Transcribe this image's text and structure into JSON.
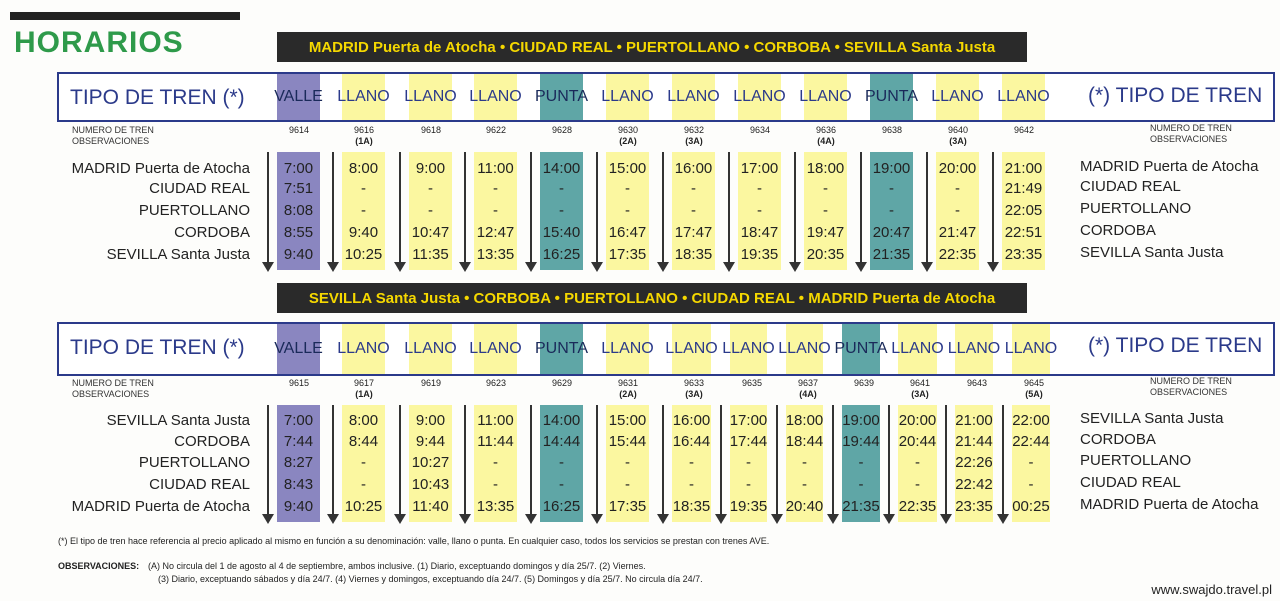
{
  "title": "HORARIOS",
  "colors": {
    "valle": "#8a86c0",
    "llano": "#fbf7a0",
    "punta": "#5fa6a6",
    "title_green": "#2e9a4a",
    "route_text": "#f5d800",
    "header_blue": "#2b3a8a"
  },
  "labels": {
    "tipo_left": "TIPO DE TREN (*)",
    "tipo_right": "(*) TIPO DE TREN",
    "numero": "NUMERO DE TREN",
    "observaciones": "OBSERVACIONES"
  },
  "tables": [
    {
      "route": "MADRID Puerta de Atocha • CIUDAD REAL • PUERTOLLANO • CORBOBA • SEVILLA Santa Justa",
      "stations": [
        "MADRID Puerta de Atocha",
        "CIUDAD REAL",
        "PUERTOLLANO",
        "CORDOBA",
        "SEVILLA Santa Justa"
      ],
      "trains": [
        {
          "type": "VALLE",
          "num": "9614",
          "obs": "",
          "times": [
            "7:00",
            "7:51",
            "8:08",
            "8:55",
            "9:40"
          ]
        },
        {
          "type": "LLANO",
          "num": "9616",
          "obs": "(1A)",
          "times": [
            "8:00",
            "-",
            "-",
            "9:40",
            "10:25"
          ]
        },
        {
          "type": "LLANO",
          "num": "9618",
          "obs": "",
          "times": [
            "9:00",
            "-",
            "-",
            "10:47",
            "11:35"
          ]
        },
        {
          "type": "LLANO",
          "num": "9622",
          "obs": "",
          "times": [
            "11:00",
            "-",
            "-",
            "12:47",
            "13:35"
          ]
        },
        {
          "type": "PUNTA",
          "num": "9628",
          "obs": "",
          "times": [
            "14:00",
            "-",
            "-",
            "15:40",
            "16:25"
          ]
        },
        {
          "type": "LLANO",
          "num": "9630",
          "obs": "(2A)",
          "times": [
            "15:00",
            "-",
            "-",
            "16:47",
            "17:35"
          ]
        },
        {
          "type": "LLANO",
          "num": "9632",
          "obs": "(3A)",
          "times": [
            "16:00",
            "-",
            "-",
            "17:47",
            "18:35"
          ]
        },
        {
          "type": "LLANO",
          "num": "9634",
          "obs": "",
          "times": [
            "17:00",
            "-",
            "-",
            "18:47",
            "19:35"
          ]
        },
        {
          "type": "LLANO",
          "num": "9636",
          "obs": "(4A)",
          "times": [
            "18:00",
            "-",
            "-",
            "19:47",
            "20:35"
          ]
        },
        {
          "type": "PUNTA",
          "num": "9638",
          "obs": "",
          "times": [
            "19:00",
            "-",
            "-",
            "20:47",
            "21:35"
          ]
        },
        {
          "type": "LLANO",
          "num": "9640",
          "obs": "(3A)",
          "times": [
            "20:00",
            "-",
            "-",
            "21:47",
            "22:35"
          ]
        },
        {
          "type": "LLANO",
          "num": "9642",
          "obs": "",
          "times": [
            "21:00",
            "21:49",
            "22:05",
            "22:51",
            "23:35"
          ]
        }
      ]
    },
    {
      "route": "SEVILLA Santa Justa • CORBOBA • PUERTOLLANO • CIUDAD REAL • MADRID Puerta de Atocha",
      "stations": [
        "SEVILLA Santa Justa",
        "CORDOBA",
        "PUERTOLLANO",
        "CIUDAD REAL",
        "MADRID Puerta de Atocha"
      ],
      "trains": [
        {
          "type": "VALLE",
          "num": "9615",
          "obs": "",
          "times": [
            "7:00",
            "7:44",
            "8:27",
            "8:43",
            "9:40"
          ]
        },
        {
          "type": "LLANO",
          "num": "9617",
          "obs": "(1A)",
          "times": [
            "8:00",
            "8:44",
            "-",
            "-",
            "10:25"
          ]
        },
        {
          "type": "LLANO",
          "num": "9619",
          "obs": "",
          "times": [
            "9:00",
            "9:44",
            "10:27",
            "10:43",
            "11:40"
          ]
        },
        {
          "type": "LLANO",
          "num": "9623",
          "obs": "",
          "times": [
            "11:00",
            "11:44",
            "-",
            "-",
            "13:35"
          ]
        },
        {
          "type": "PUNTA",
          "num": "9629",
          "obs": "",
          "times": [
            "14:00",
            "14:44",
            "-",
            "-",
            "16:25"
          ]
        },
        {
          "type": "LLANO",
          "num": "9631",
          "obs": "(2A)",
          "times": [
            "15:00",
            "15:44",
            "-",
            "-",
            "17:35"
          ]
        },
        {
          "type": "LLANO",
          "num": "9633",
          "obs": "(3A)",
          "times": [
            "16:00",
            "16:44",
            "-",
            "-",
            "18:35"
          ]
        },
        {
          "type": "LLANO",
          "num": "9635",
          "obs": "",
          "times": [
            "17:00",
            "17:44",
            "-",
            "-",
            "19:35"
          ]
        },
        {
          "type": "LLANO",
          "num": "9637",
          "obs": "(4A)",
          "times": [
            "18:00",
            "18:44",
            "-",
            "-",
            "20:40"
          ]
        },
        {
          "type": "PUNTA",
          "num": "9639",
          "obs": "",
          "times": [
            "19:00",
            "19:44",
            "-",
            "-",
            "21:35"
          ]
        },
        {
          "type": "LLANO",
          "num": "9641",
          "obs": "(3A)",
          "times": [
            "20:00",
            "20:44",
            "-",
            "-",
            "22:35"
          ]
        },
        {
          "type": "LLANO",
          "num": "9643",
          "obs": "",
          "times": [
            "21:00",
            "21:44",
            "22:26",
            "22:42",
            "23:35"
          ]
        },
        {
          "type": "LLANO",
          "num": "9645",
          "obs": "(5A)",
          "times": [
            "22:00",
            "22:44",
            "-",
            "-",
            "00:25"
          ]
        }
      ]
    }
  ],
  "footnote": "(*) El tipo de tren hace referencia al precio aplicado al mismo en función a su denominación: valle, llano o punta. En cualquier caso, todos los servicios se prestan con trenes AVE.",
  "observaciones": {
    "label": "OBSERVACIONES:",
    "line1": "(A) No circula del 1 de agosto al 4 de septiembre, ambos inclusive. (1) Diario, exceptuando domingos y día 25/7. (2) Viernes.",
    "line2": "(3) Diario, exceptuando sábados y día 24/7. (4) Viernes y domingos, exceptuando día 24/7. (5) Domingos y día 25/7. No circula día 24/7."
  },
  "watermark": "www.swajdo.travel.pl"
}
